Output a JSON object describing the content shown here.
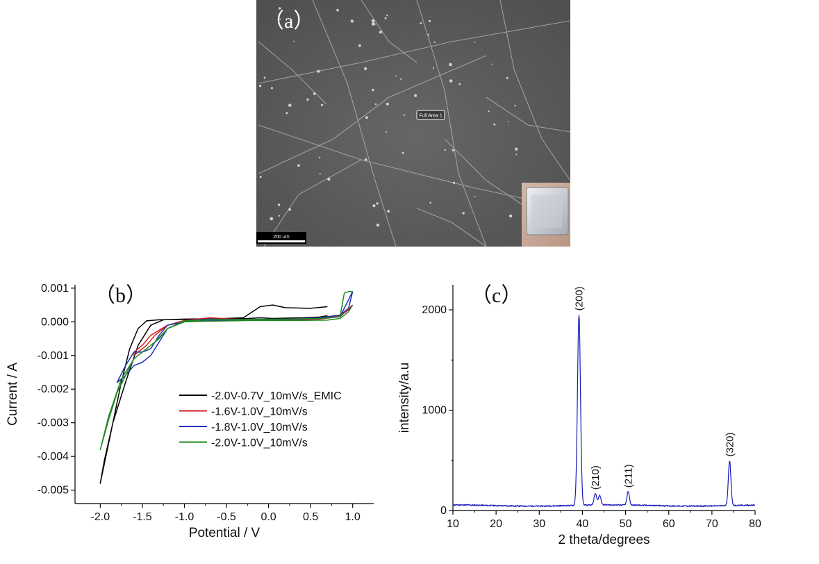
{
  "figure": {
    "panel_a": {
      "label": "（a）",
      "annotation": "Full Area 1",
      "scale_bar": "200 um"
    }
  },
  "chart_data": [
    {
      "panel": "（b）",
      "type": "line",
      "xlabel": "Potential / V",
      "ylabel": "Current / A",
      "xlim": [
        -2.3,
        1.25
      ],
      "ylim": [
        -0.0054,
        0.0011
      ],
      "xticks": [
        -2.0,
        -1.5,
        -1.0,
        -0.5,
        0.0,
        0.5,
        1.0
      ],
      "xtick_labels": [
        "-2.0",
        "-1.5",
        "-1.0",
        "-0.5",
        "0.0",
        "0.5",
        "1.0"
      ],
      "yticks": [
        0.001,
        0.0,
        -0.001,
        -0.002,
        -0.003,
        -0.004,
        -0.005
      ],
      "ytick_labels": [
        "0.001",
        "0.000",
        "-0.001",
        "-0.002",
        "-0.003",
        "-0.004",
        "-0.005"
      ],
      "legend_position": "center-right",
      "grid": false,
      "series": [
        {
          "name": "-2.0V-0.7V_10mV/s_EMIC",
          "color": "#000000",
          "x": [
            0.7,
            0.5,
            0.2,
            0.05,
            -0.1,
            -0.3,
            -0.6,
            -1.0,
            -1.25,
            -1.4,
            -1.55,
            -1.7,
            -1.85,
            -1.95,
            -2.0,
            -1.95,
            -1.85,
            -1.75,
            -1.65,
            -1.55,
            -1.45,
            -1.3,
            -1.0,
            -0.5,
            -0.3,
            -0.1,
            0.05,
            0.2,
            0.4,
            0.6,
            0.7
          ],
          "y": [
            0.00045,
            0.0004,
            0.00042,
            0.0005,
            0.00045,
            0.00012,
            9e-05,
            8e-05,
            6e-05,
            -0.0001,
            -0.0007,
            -0.0018,
            -0.003,
            -0.0041,
            -0.0048,
            -0.0042,
            -0.003,
            -0.0018,
            -0.0008,
            -0.0002,
            3e-05,
            6e-05,
            7e-05,
            8e-05,
            9e-05,
            0.00012,
            0.0001,
            0.00011,
            0.00012,
            0.00014,
            0.00018
          ]
        },
        {
          "name": "-1.6V-1.0V_10mV/s",
          "color": "#d62020",
          "x": [
            1.0,
            0.85,
            0.6,
            0.2,
            -0.2,
            -0.7,
            -1.0,
            -1.2,
            -1.35,
            -1.45,
            -1.55,
            -1.6,
            -1.6,
            -1.5,
            -1.4,
            -1.2,
            -1.0,
            -0.7,
            -0.3,
            0.2,
            0.6,
            0.85,
            0.95,
            1.0
          ],
          "y": [
            0.0005,
            0.00015,
            8e-05,
            6e-05,
            5e-05,
            0.00012,
            4e-05,
            -0.0001,
            -0.0004,
            -0.0007,
            -0.0009,
            -0.001,
            -0.0009,
            -0.0007,
            -0.0004,
            -0.0001,
            0.0,
            3e-05,
            5e-05,
            7e-05,
            0.0001,
            0.00018,
            0.00035,
            0.0005
          ]
        },
        {
          "name": "-1.8V-1.0V_10mV/s",
          "color": "#1f2fb0",
          "x": [
            1.0,
            0.9,
            0.85,
            0.6,
            0.2,
            -0.3,
            -0.7,
            -1.0,
            -1.2,
            -1.3,
            -1.4,
            -1.5,
            -1.6,
            -1.7,
            -1.8,
            -1.7,
            -1.6,
            -1.5,
            -1.4,
            -1.3,
            -1.2,
            -1.0,
            -0.7,
            -0.3,
            0.2,
            0.6,
            0.85,
            0.95,
            1.0
          ],
          "y": [
            0.0009,
            0.0004,
            0.00015,
            0.0001,
            7e-05,
            6e-05,
            8e-05,
            3e-05,
            -0.0002,
            -0.0006,
            -0.001,
            -0.0012,
            -0.0013,
            -0.0016,
            -0.0018,
            -0.0013,
            -0.0009,
            -0.0009,
            -0.0008,
            -0.0004,
            -0.0001,
            0.0,
            3e-05,
            5e-05,
            8e-05,
            0.00012,
            0.0002,
            0.0004,
            0.0009
          ]
        },
        {
          "name": "-2.0V-1.0V_10mV/s",
          "color": "#1e8a1e",
          "x": [
            1.0,
            0.95,
            0.9,
            0.85,
            0.6,
            0.2,
            -0.3,
            -0.7,
            -1.0,
            -1.2,
            -1.3,
            -1.45,
            -1.6,
            -1.75,
            -1.9,
            -2.0,
            -1.9,
            -1.8,
            -1.7,
            -1.6,
            -1.5,
            -1.35,
            -1.2,
            -1.0,
            -0.6,
            -0.2,
            0.3,
            0.7,
            0.85,
            0.95,
            1.0
          ],
          "y": [
            0.0009,
            0.0009,
            0.00085,
            0.00015,
            0.0001,
            8e-05,
            7e-05,
            6e-05,
            3e-05,
            -0.0002,
            -0.0005,
            -0.0008,
            -0.0011,
            -0.0017,
            -0.0028,
            -0.0038,
            -0.0029,
            -0.0021,
            -0.0016,
            -0.0011,
            -0.0009,
            -0.0006,
            -0.0002,
            0.0,
            2e-05,
            4e-05,
            4e-05,
            5e-05,
            0.0001,
            0.0003,
            0.0005
          ]
        }
      ]
    },
    {
      "panel": "（c）",
      "type": "line",
      "xlabel": "2 theta/degrees",
      "ylabel": "intensity/a.u",
      "xlim": [
        10,
        80
      ],
      "ylim": [
        0,
        2250
      ],
      "xticks": [
        10,
        20,
        30,
        40,
        50,
        60,
        70,
        80
      ],
      "xtick_labels": [
        "10",
        "20",
        "30",
        "40",
        "50",
        "60",
        "70",
        "80"
      ],
      "yticks": [
        0,
        1000,
        2000
      ],
      "ytick_labels": [
        "0",
        "1000",
        "2000"
      ],
      "grid": false,
      "series": [
        {
          "color": "#1a1ab8",
          "baseline": 50,
          "peaks": [
            {
              "x": 39.2,
              "y": 1900,
              "width": 0.35,
              "label": "(200)"
            },
            {
              "x": 43.0,
              "y": 115,
              "width": 0.3,
              "label": "(210)"
            },
            {
              "x": 44.0,
              "y": 95,
              "width": 0.3,
              "label": ""
            },
            {
              "x": 50.6,
              "y": 135,
              "width": 0.28,
              "label": "(211)"
            },
            {
              "x": 74.1,
              "y": 445,
              "width": 0.3,
              "label": "(320)"
            }
          ]
        }
      ]
    }
  ]
}
